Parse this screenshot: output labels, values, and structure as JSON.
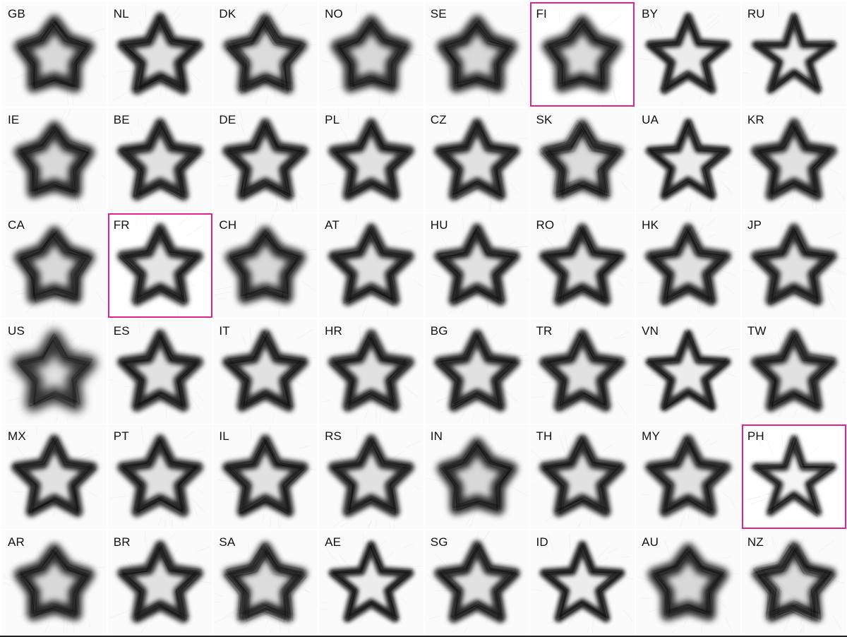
{
  "highlight_color": "#e0238f",
  "cells": [
    {
      "code": "GB",
      "highlighted": false,
      "variant": "round"
    },
    {
      "code": "NL",
      "highlighted": false,
      "variant": "normal"
    },
    {
      "code": "DK",
      "highlighted": false,
      "variant": "fuzzy"
    },
    {
      "code": "NO",
      "highlighted": false,
      "variant": "round"
    },
    {
      "code": "SE",
      "highlighted": false,
      "variant": "round"
    },
    {
      "code": "FI",
      "highlighted": true,
      "variant": "round"
    },
    {
      "code": "BY",
      "highlighted": false,
      "variant": "crisp"
    },
    {
      "code": "RU",
      "highlighted": false,
      "variant": "pentagram"
    },
    {
      "code": "IE",
      "highlighted": false,
      "variant": "round"
    },
    {
      "code": "BE",
      "highlighted": false,
      "variant": "normal"
    },
    {
      "code": "DE",
      "highlighted": false,
      "variant": "normal"
    },
    {
      "code": "PL",
      "highlighted": false,
      "variant": "normal"
    },
    {
      "code": "CZ",
      "highlighted": false,
      "variant": "normal"
    },
    {
      "code": "SK",
      "highlighted": false,
      "variant": "fuzzy"
    },
    {
      "code": "UA",
      "highlighted": false,
      "variant": "crisp"
    },
    {
      "code": "KR",
      "highlighted": false,
      "variant": "normal"
    },
    {
      "code": "CA",
      "highlighted": false,
      "variant": "round"
    },
    {
      "code": "FR",
      "highlighted": true,
      "variant": "normal"
    },
    {
      "code": "CH",
      "highlighted": false,
      "variant": "round"
    },
    {
      "code": "AT",
      "highlighted": false,
      "variant": "normal"
    },
    {
      "code": "HU",
      "highlighted": false,
      "variant": "normal"
    },
    {
      "code": "RO",
      "highlighted": false,
      "variant": "normal"
    },
    {
      "code": "HK",
      "highlighted": false,
      "variant": "normal"
    },
    {
      "code": "JP",
      "highlighted": false,
      "variant": "normal"
    },
    {
      "code": "US",
      "highlighted": false,
      "variant": "blurry"
    },
    {
      "code": "ES",
      "highlighted": false,
      "variant": "normal"
    },
    {
      "code": "IT",
      "highlighted": false,
      "variant": "normal"
    },
    {
      "code": "HR",
      "highlighted": false,
      "variant": "normal"
    },
    {
      "code": "BG",
      "highlighted": false,
      "variant": "normal"
    },
    {
      "code": "TR",
      "highlighted": false,
      "variant": "normal"
    },
    {
      "code": "VN",
      "highlighted": false,
      "variant": "crisp"
    },
    {
      "code": "TW",
      "highlighted": false,
      "variant": "normal"
    },
    {
      "code": "MX",
      "highlighted": false,
      "variant": "normal"
    },
    {
      "code": "PT",
      "highlighted": false,
      "variant": "normal"
    },
    {
      "code": "IL",
      "highlighted": false,
      "variant": "normal"
    },
    {
      "code": "RS",
      "highlighted": false,
      "variant": "normal"
    },
    {
      "code": "IN",
      "highlighted": false,
      "variant": "round"
    },
    {
      "code": "TH",
      "highlighted": false,
      "variant": "normal"
    },
    {
      "code": "MY",
      "highlighted": false,
      "variant": "normal"
    },
    {
      "code": "PH",
      "highlighted": true,
      "variant": "pentagram"
    },
    {
      "code": "AR",
      "highlighted": false,
      "variant": "round"
    },
    {
      "code": "BR",
      "highlighted": false,
      "variant": "normal"
    },
    {
      "code": "SA",
      "highlighted": false,
      "variant": "fuzzy"
    },
    {
      "code": "AE",
      "highlighted": false,
      "variant": "crisp"
    },
    {
      "code": "SG",
      "highlighted": false,
      "variant": "normal"
    },
    {
      "code": "ID",
      "highlighted": false,
      "variant": "crisp"
    },
    {
      "code": "AU",
      "highlighted": false,
      "variant": "round"
    },
    {
      "code": "NZ",
      "highlighted": false,
      "variant": "fuzzy"
    }
  ]
}
